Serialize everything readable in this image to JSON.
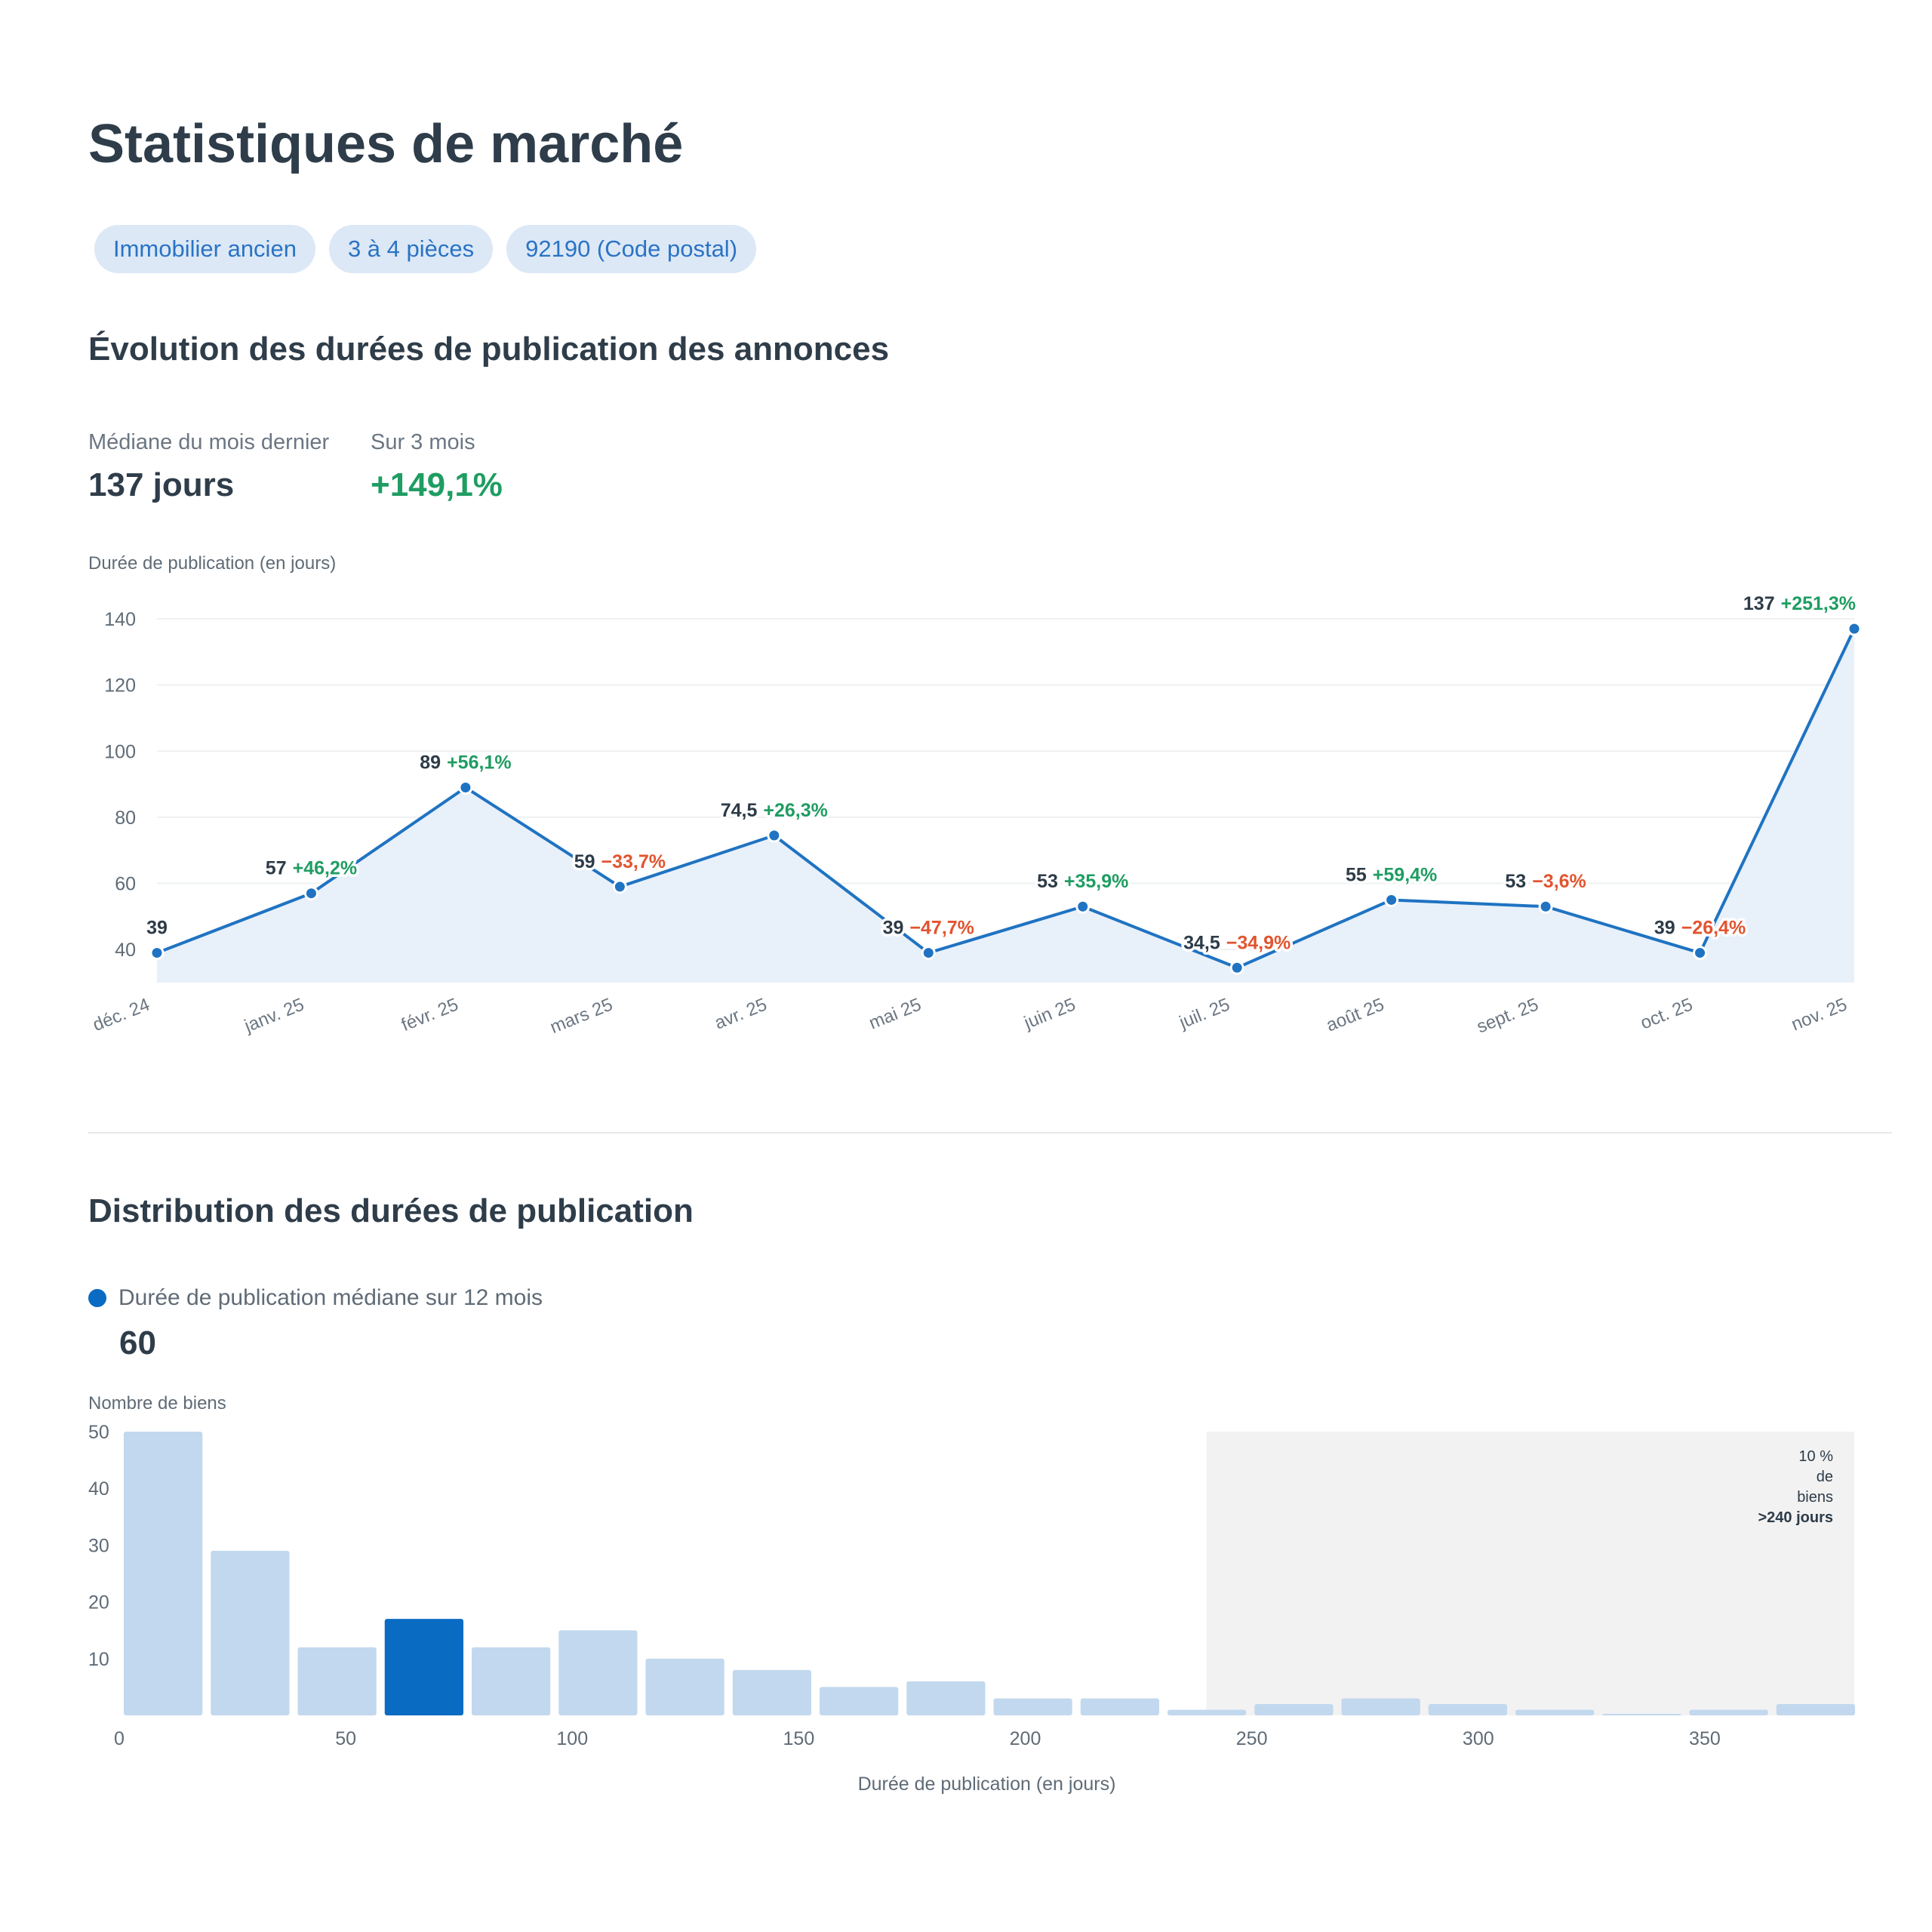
{
  "header": {
    "title": "Statistiques de marché",
    "chips": [
      "Immobilier ancien",
      "3 à 4 pièces",
      "92190 (Code postal)"
    ]
  },
  "evolution": {
    "title": "Évolution des durées de publication des annonces",
    "kpis": [
      {
        "label": "Médiane du mois dernier",
        "value": "137 jours"
      },
      {
        "label": "Sur 3 mois",
        "value": "+149,1%"
      }
    ]
  },
  "distribution": {
    "title": "Distribution des durées de publication",
    "legend_label": "Durée de publication médiane sur 12 mois",
    "median_value": "60",
    "annotation": {
      "line1": "10 %",
      "line2": "de",
      "line3": "biens",
      "line4": ">240 jours"
    }
  },
  "colors": {
    "line": "#1f73c2",
    "area": "#e8f0fa",
    "positive": "#1f9d62",
    "negative": "#e2542f",
    "bar": "#c2d8ee",
    "bar_highlight": "#0a6bc2",
    "shaded_zone": "#f2f2f2"
  },
  "chart_data": [
    {
      "type": "line",
      "ylabel": "Durée de publication (en jours)",
      "categories": [
        "déc. 24",
        "janv. 25",
        "févr. 25",
        "mars 25",
        "avr. 25",
        "mai 25",
        "juin 25",
        "juil. 25",
        "août 25",
        "sept. 25",
        "oct. 25",
        "nov. 25"
      ],
      "values": [
        39,
        57,
        89,
        59,
        74.5,
        39,
        53,
        34.5,
        55,
        53,
        39,
        137
      ],
      "value_labels": [
        "39",
        "57",
        "89",
        "59",
        "74,5",
        "39",
        "53",
        "34,5",
        "55",
        "53",
        "39",
        "137"
      ],
      "change_labels": [
        "",
        "+46,2%",
        "+56,1%",
        "−33,7%",
        "+26,3%",
        "−47,7%",
        "+35,9%",
        "−34,9%",
        "+59,4%",
        "−3,6%",
        "−26,4%",
        "+251,3%"
      ],
      "change_positive": [
        null,
        true,
        true,
        false,
        true,
        false,
        true,
        false,
        true,
        false,
        false,
        true
      ],
      "yticks": [
        "40",
        "60",
        "80",
        "100",
        "120",
        "140"
      ],
      "ylim": [
        30,
        140
      ],
      "grid": true
    },
    {
      "type": "bar",
      "ylabel": "Nombre de biens",
      "xlabel": "Durée de publication (en jours)",
      "bin_width": 19.2,
      "values": [
        50,
        29,
        12,
        17,
        12,
        15,
        10,
        8,
        5,
        6,
        3,
        3,
        1,
        2,
        3,
        2,
        1,
        0,
        1,
        2
      ],
      "highlight_index": 3,
      "xticks": [
        "0",
        "50",
        "100",
        "150",
        "200",
        "250",
        "300",
        "350"
      ],
      "yticks": [
        "10",
        "20",
        "30",
        "40",
        "50"
      ],
      "xlim": [
        0,
        383
      ],
      "ylim": [
        0,
        50
      ],
      "shaded_from": 240
    }
  ]
}
